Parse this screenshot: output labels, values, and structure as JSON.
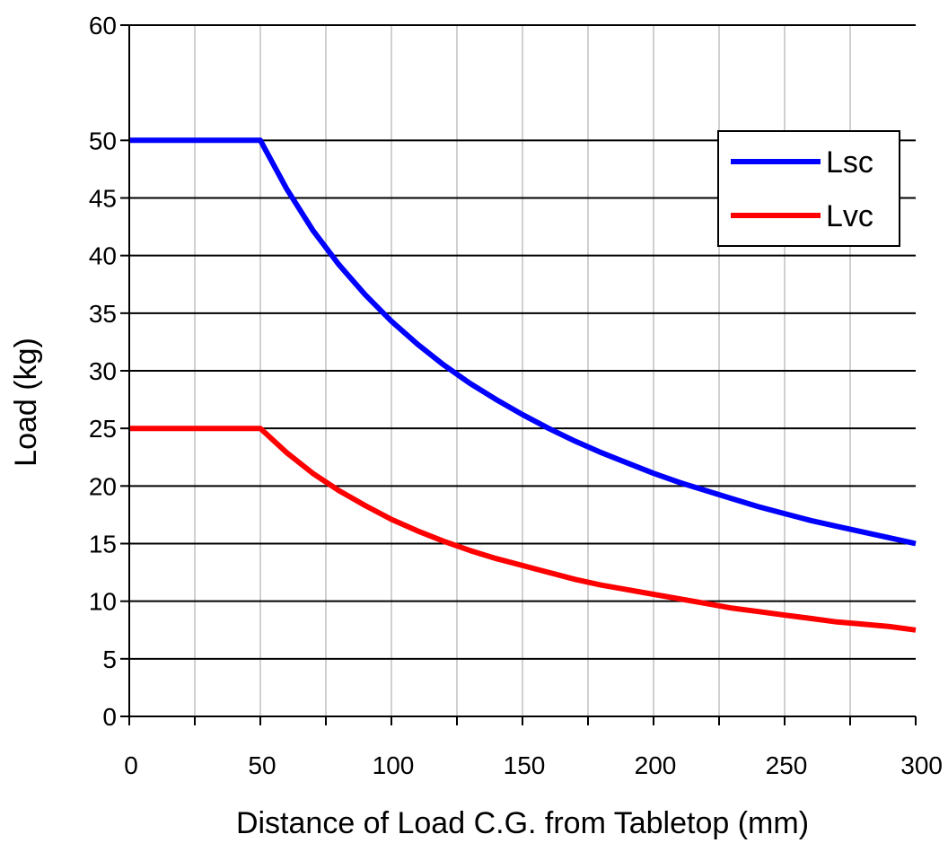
{
  "chart_data": {
    "type": "line",
    "title": "",
    "xlabel": "Distance of Load C.G. from Tabletop (mm)",
    "ylabel": "Load (kg)",
    "xlim": [
      0,
      300
    ],
    "ylim": [
      0,
      60
    ],
    "x_ticks": [
      0,
      50,
      100,
      150,
      200,
      250,
      300
    ],
    "x_tick_labels": [
      "0",
      "50",
      "100",
      "150",
      "200",
      "250",
      "300"
    ],
    "y_ticks": [
      0,
      5,
      10,
      15,
      20,
      25,
      30,
      35,
      40,
      45,
      50,
      60
    ],
    "y_tick_labels": [
      "0",
      "5",
      "10",
      "15",
      "20",
      "25",
      "30",
      "35",
      "40",
      "45",
      "50",
      "60"
    ],
    "grid": true,
    "legend_position": "top-right",
    "series": [
      {
        "name": "Lsc",
        "color": "#0000ff",
        "x": [
          0,
          50,
          60,
          70,
          80,
          90,
          100,
          110,
          120,
          130,
          140,
          150,
          160,
          170,
          180,
          190,
          200,
          210,
          220,
          230,
          240,
          250,
          260,
          270,
          280,
          290,
          300
        ],
        "y": [
          50,
          50,
          45.8,
          42.2,
          39.2,
          36.6,
          34.3,
          32.3,
          30.5,
          28.9,
          27.5,
          26.2,
          25,
          23.9,
          22.9,
          22,
          21.1,
          20.3,
          19.6,
          18.9,
          18.2,
          17.6,
          17,
          16.5,
          16,
          15.5,
          15
        ]
      },
      {
        "name": "Lvc",
        "color": "#ff0000",
        "x": [
          0,
          50,
          60,
          70,
          80,
          90,
          100,
          110,
          120,
          130,
          140,
          150,
          160,
          170,
          180,
          190,
          200,
          210,
          220,
          230,
          240,
          250,
          260,
          270,
          280,
          290,
          300
        ],
        "y": [
          25,
          25,
          22.9,
          21.1,
          19.6,
          18.3,
          17.1,
          16.1,
          15.2,
          14.4,
          13.7,
          13.1,
          12.5,
          11.9,
          11.4,
          11,
          10.6,
          10.2,
          9.8,
          9.4,
          9.1,
          8.8,
          8.5,
          8.2,
          8,
          7.8,
          7.5
        ]
      }
    ]
  }
}
